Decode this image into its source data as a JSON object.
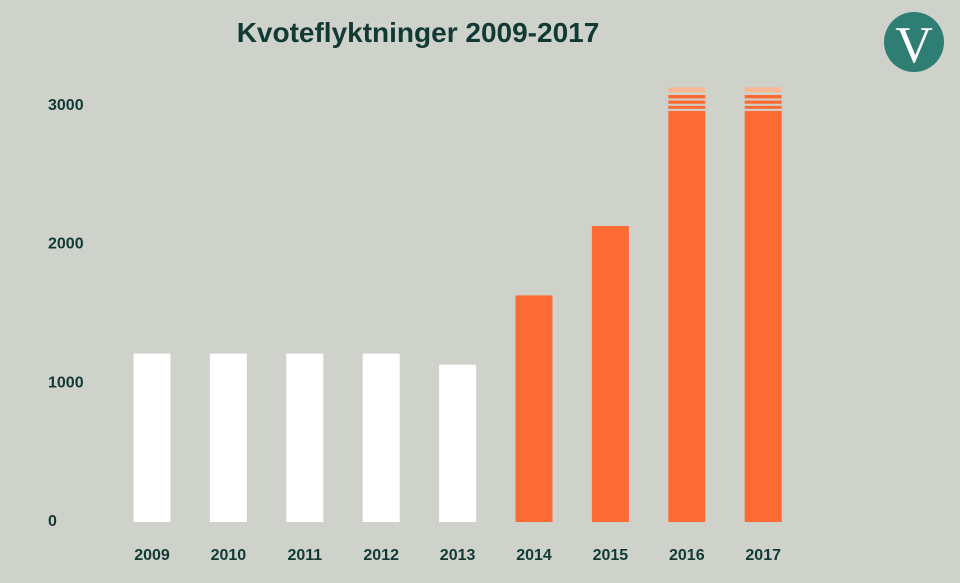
{
  "colors": {
    "background": "#cfd1cb",
    "text": "#123a35",
    "bar_before": "#ffffff",
    "bar_after": "#fe6a33",
    "bar_stripe_light": "#f9b894",
    "logo_circle": "#2f7e74"
  },
  "logo": {
    "letter": "V",
    "icon": "party-logo-icon"
  },
  "chart_data": {
    "type": "bar",
    "title": "Kvoteflyktninger 2009-2017",
    "xlabel": "",
    "ylabel": "",
    "grid": false,
    "legend": "none",
    "ylim": [
      0,
      3000
    ],
    "yticks": [
      "0",
      "1000",
      "2000",
      "3000"
    ],
    "categories": [
      "2009",
      "2010",
      "2011",
      "2012",
      "2013",
      "2014",
      "2015",
      "2016",
      "2017"
    ],
    "values": [
      1200,
      1200,
      1200,
      1200,
      1120,
      1620,
      2120,
      3120,
      3120
    ],
    "bar_color_group": [
      "white",
      "white",
      "white",
      "white",
      "white",
      "orange",
      "orange",
      "orange",
      "orange"
    ],
    "striped_top": [
      false,
      false,
      false,
      false,
      false,
      false,
      false,
      true,
      true
    ]
  }
}
